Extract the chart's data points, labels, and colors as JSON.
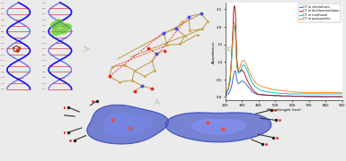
{
  "background": "#f0f0f0",
  "spectrum": {
    "xlabel": "Wavelength (nm)",
    "ylabel": "Absorbance",
    "xlim": [
      200,
      900
    ],
    "ylim": [
      -0.1,
      2.7
    ],
    "legend": [
      "CT in chloroform",
      "CT in dichloromethane",
      "CT in methanol",
      "CT in acetonitrile"
    ],
    "colors": [
      "#4455dd",
      "#9b1111",
      "#00bbbb",
      "#ee8822"
    ],
    "wavelengths": [
      200,
      210,
      220,
      230,
      235,
      240,
      245,
      248,
      250,
      253,
      255,
      257,
      260,
      263,
      265,
      268,
      270,
      275,
      280,
      285,
      290,
      295,
      300,
      310,
      320,
      330,
      340,
      350,
      360,
      370,
      380,
      390,
      400,
      420,
      440,
      460,
      480,
      500,
      520,
      540,
      560,
      580,
      600,
      620,
      640,
      660,
      680,
      700,
      750,
      800,
      850,
      900
    ],
    "chloroform": [
      0.04,
      0.06,
      0.1,
      0.18,
      0.25,
      0.35,
      0.48,
      0.55,
      0.62,
      0.68,
      0.72,
      0.74,
      0.75,
      0.72,
      0.65,
      0.55,
      0.48,
      0.4,
      0.38,
      0.4,
      0.42,
      0.44,
      0.46,
      0.44,
      0.4,
      0.34,
      0.28,
      0.22,
      0.16,
      0.12,
      0.1,
      0.08,
      0.07,
      0.06,
      0.05,
      0.05,
      0.04,
      0.04,
      0.04,
      0.03,
      0.03,
      0.03,
      0.03,
      0.02,
      0.02,
      0.02,
      0.02,
      0.02,
      0.02,
      0.01,
      0.01,
      0.01
    ],
    "dcm": [
      0.08,
      0.14,
      0.25,
      0.55,
      0.9,
      1.35,
      1.8,
      2.1,
      2.4,
      2.55,
      2.6,
      2.58,
      2.5,
      2.2,
      1.8,
      1.4,
      1.1,
      0.85,
      0.75,
      0.72,
      0.72,
      0.74,
      0.78,
      0.72,
      0.62,
      0.5,
      0.4,
      0.32,
      0.24,
      0.18,
      0.14,
      0.1,
      0.08,
      0.07,
      0.06,
      0.05,
      0.05,
      0.04,
      0.04,
      0.03,
      0.03,
      0.03,
      0.02,
      0.02,
      0.02,
      0.02,
      0.01,
      0.01,
      0.01,
      0.01,
      0.01,
      0.01
    ],
    "methanol": [
      0.07,
      0.12,
      0.22,
      0.45,
      0.75,
      1.1,
      1.48,
      1.7,
      1.9,
      2.0,
      2.02,
      2.0,
      1.92,
      1.65,
      1.35,
      1.05,
      0.85,
      0.72,
      0.68,
      0.7,
      0.74,
      0.8,
      0.88,
      0.92,
      0.88,
      0.78,
      0.65,
      0.52,
      0.42,
      0.35,
      0.3,
      0.26,
      0.22,
      0.18,
      0.16,
      0.14,
      0.13,
      0.12,
      0.11,
      0.1,
      0.1,
      0.09,
      0.09,
      0.09,
      0.09,
      0.09,
      0.09,
      0.09,
      0.09,
      0.09,
      0.09,
      0.09
    ],
    "acetonitrile": [
      0.09,
      0.16,
      0.28,
      0.55,
      0.88,
      1.25,
      1.62,
      1.85,
      2.05,
      2.12,
      2.1,
      2.05,
      1.95,
      1.68,
      1.38,
      1.08,
      0.88,
      0.78,
      0.78,
      0.82,
      0.88,
      0.95,
      1.02,
      1.05,
      1.0,
      0.9,
      0.78,
      0.66,
      0.56,
      0.48,
      0.42,
      0.38,
      0.34,
      0.3,
      0.27,
      0.25,
      0.22,
      0.2,
      0.19,
      0.18,
      0.17,
      0.16,
      0.15,
      0.14,
      0.14,
      0.13,
      0.13,
      0.13,
      0.13,
      0.13,
      0.13,
      0.13
    ]
  }
}
